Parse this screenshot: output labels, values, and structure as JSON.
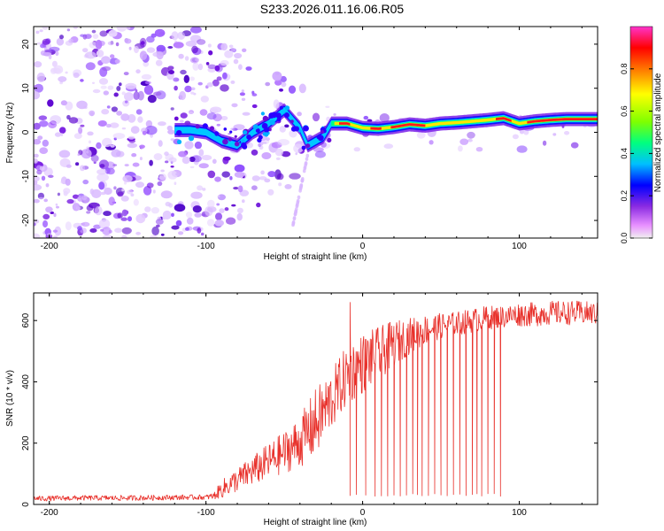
{
  "page": {
    "title": "S233.2026.011.16.06.R05"
  },
  "chart_data": [
    {
      "type": "heatmap",
      "title": "S233.2026.011.16.06.R05",
      "xlabel": "Height of straight line (km)",
      "ylabel": "Frequency (Hz)",
      "xlim": [
        -210,
        150
      ],
      "ylim": [
        -24,
        24
      ],
      "xticks": [
        -200,
        -100,
        0,
        100
      ],
      "yticks": [
        -20,
        -10,
        0,
        10,
        20
      ],
      "xtick_labels": [
        "-200",
        "-100",
        "0",
        "100"
      ],
      "ytick_labels": [
        "-20",
        "-10",
        "0",
        "10",
        "20"
      ],
      "colorbar": {
        "label": "Normalized spectral amplitude",
        "range": [
          0,
          1
        ],
        "ticks": [
          0.0,
          0.2,
          0.4,
          0.6,
          0.8
        ],
        "tick_labels": [
          "0.0",
          "0.2",
          "0.4",
          "0.6",
          "0.8"
        ],
        "colors": [
          "#f0f0f0",
          "#e890ff",
          "#8a2be2",
          "#0000ff",
          "#00bfff",
          "#00ff7f",
          "#7fff00",
          "#ffff00",
          "#ff8c00",
          "#ff0000",
          "#ff33cc"
        ]
      },
      "ridge": {
        "description": "dominant frequency trace",
        "x": [
          -120,
          -110,
          -100,
          -90,
          -80,
          -70,
          -60,
          -50,
          -40,
          -35,
          -30,
          -25,
          -20,
          -10,
          0,
          10,
          20,
          30,
          40,
          50,
          60,
          70,
          80,
          90,
          100,
          110,
          120,
          130,
          140,
          150
        ],
        "y": [
          0.5,
          0.5,
          0,
          -2,
          -3,
          0,
          2,
          5,
          1,
          -3,
          -2,
          -1,
          2,
          2,
          1,
          0.8,
          1.2,
          1.8,
          1.5,
          2,
          2.2,
          2.5,
          2.8,
          3.2,
          2,
          2.5,
          2.8,
          3,
          3,
          3
        ]
      }
    },
    {
      "type": "line",
      "xlabel": "Height of straight line (km)",
      "ylabel": "SNR (10 * v/v)",
      "xlim": [
        -210,
        150
      ],
      "ylim": [
        0,
        690
      ],
      "xticks": [
        -200,
        -100,
        0,
        100
      ],
      "yticks": [
        0,
        200,
        400,
        600
      ],
      "xtick_labels": [
        "-200",
        "-100",
        "0",
        "100"
      ],
      "ytick_labels": [
        "0",
        "200",
        "400",
        "600"
      ],
      "series": [
        {
          "name": "SNR",
          "color": "#e8312b",
          "envelope": {
            "x": [
              -210,
              -180,
              -150,
              -120,
              -100,
              -95,
              -90,
              -80,
              -70,
              -60,
              -50,
              -40,
              -30,
              -20,
              -15,
              -10,
              0,
              10,
              20,
              30,
              40,
              50,
              60,
              70,
              80,
              90,
              100,
              110,
              120,
              130,
              140,
              150
            ],
            "y_low": [
              10,
              12,
              12,
              14,
              15,
              15,
              20,
              40,
              60,
              80,
              100,
              120,
              150,
              240,
              280,
              320,
              360,
              400,
              450,
              490,
              520,
              540,
              550,
              560,
              570,
              575,
              580,
              580,
              585,
              585,
              585,
              585
            ],
            "y_high": [
              28,
              30,
              30,
              32,
              32,
              40,
              80,
              120,
              160,
              200,
              240,
              290,
              380,
              440,
              480,
              520,
              560,
              580,
              600,
              610,
              620,
              625,
              630,
              640,
              650,
              650,
              660,
              660,
              665,
              665,
              665,
              660
            ]
          },
          "dropouts_x": [
            -8,
            -4,
            2,
            8,
            12,
            16,
            20,
            24,
            28,
            32,
            35,
            38,
            42,
            46,
            50,
            54,
            58,
            62,
            66,
            70,
            73,
            76,
            80,
            84,
            88
          ],
          "spike": {
            "x": -8,
            "y": 660
          }
        }
      ]
    }
  ]
}
